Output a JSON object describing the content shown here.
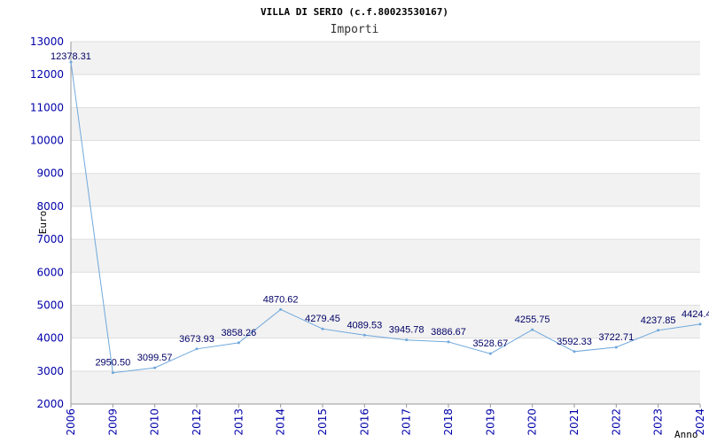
{
  "chart_data": {
    "type": "line",
    "title": "VILLA DI SERIO (c.f.80023530167)",
    "subtitle": "Importi",
    "xlabel": "Anno",
    "ylabel": "Euro",
    "ylim": [
      2000,
      13000
    ],
    "yticks": [
      2000,
      3000,
      4000,
      5000,
      6000,
      7000,
      8000,
      9000,
      10000,
      11000,
      12000,
      13000
    ],
    "grid": true,
    "colors": {
      "line": "#6fa8dc",
      "band": "#f2f2f2",
      "grid": "#dddddd",
      "tick_text": "#0000aa",
      "label_text": "#000066"
    },
    "categories": [
      "2006",
      "2009",
      "2010",
      "2012",
      "2013",
      "2014",
      "2015",
      "2016",
      "2017",
      "2018",
      "2019",
      "2020",
      "2021",
      "2022",
      "2023",
      "2024"
    ],
    "values": [
      12378.31,
      2950.5,
      3099.57,
      3673.93,
      3858.26,
      4870.62,
      4279.45,
      4089.53,
      3945.78,
      3886.67,
      3528.67,
      4255.75,
      3592.33,
      3722.71,
      4237.85,
      4424.4
    ],
    "value_labels": [
      "12378.31",
      "2950.50",
      "3099.57",
      "3673.93",
      "3858.26",
      "4870.62",
      "4279.45",
      "4089.53",
      "3945.78",
      "3886.67",
      "3528.67",
      "4255.75",
      "3592.33",
      "3722.71",
      "4237.85",
      "4424.4"
    ]
  }
}
